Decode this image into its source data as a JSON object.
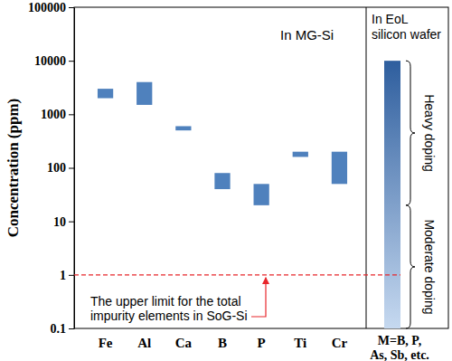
{
  "chart_data": {
    "type": "range_bar",
    "log": "y",
    "y_label": "Concentration (ppm)",
    "ylim": [
      0.1,
      100000
    ],
    "yticks": [
      0.1,
      1,
      10,
      100,
      1000,
      10000,
      100000
    ],
    "panel_title": "In MG-Si",
    "categories": [
      "Fe",
      "Al",
      "Ca",
      "B",
      "P",
      "Ti",
      "Cr"
    ],
    "values": [
      [
        2000,
        3000
      ],
      [
        1500,
        4000
      ],
      [
        500,
        600
      ],
      [
        40,
        80
      ],
      [
        20,
        50
      ],
      [
        160,
        200
      ],
      [
        50,
        200
      ]
    ],
    "color": "#4f81bd",
    "reference_line": {
      "value": 1,
      "color": "#e8262b",
      "line_style": "dashed",
      "label_lines": [
        "The upper limit for the total",
        "impurity elements in SoG-Si"
      ]
    },
    "eol": {
      "title_lines": [
        "In EoL",
        "silicon wafer"
      ],
      "category_lines": [
        "M=B, P,",
        "As, Sb, etc."
      ],
      "range": [
        0.1,
        10000
      ],
      "colors": [
        "#c6d9f0",
        "#2e5e9e"
      ],
      "braces": [
        {
          "label": "Heavy doping",
          "range": [
            20,
            10000
          ]
        },
        {
          "label": "Moderate doping",
          "range": [
            0.1,
            20
          ]
        }
      ]
    }
  }
}
